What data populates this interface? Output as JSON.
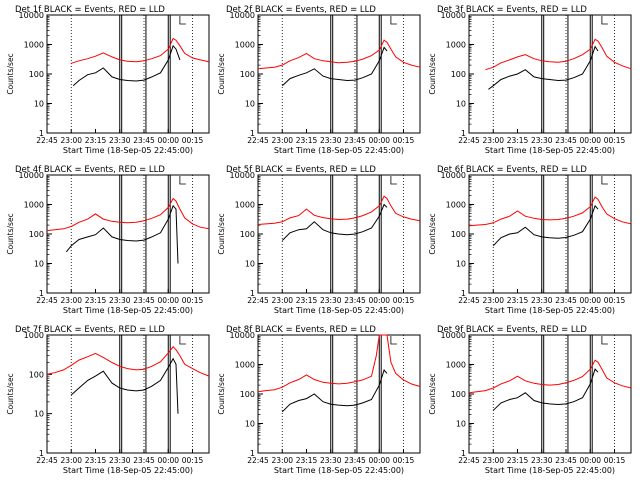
{
  "chart_data": [
    {
      "type": "line",
      "title": "Det 1f BLACK = Events, RED = LLD",
      "xlabel": "Start Time (18-Sep-05 22:45:00)",
      "ylabel": "Counts/sec",
      "yscale": "log",
      "ylim": [
        1,
        10000
      ],
      "xticks": [
        "22:45",
        "23:00",
        "23:15",
        "23:30",
        "23:45",
        "00:00",
        "00:15"
      ],
      "yticks": [
        "1",
        "10",
        "100",
        "1000",
        "10000"
      ],
      "series": [
        {
          "name": "LLD",
          "color": "#ff0000",
          "x": [
            23.0,
            23.08,
            23.17,
            23.25,
            23.33,
            23.42,
            23.5,
            23.58,
            23.67,
            23.75,
            23.83,
            23.92,
            24.0,
            24.05,
            24.08,
            24.12,
            24.17,
            24.25,
            24.33,
            24.42
          ],
          "values": [
            230,
            280,
            330,
            400,
            520,
            380,
            300,
            270,
            260,
            280,
            330,
            420,
            700,
            1600,
            1400,
            900,
            500,
            350,
            300,
            260
          ]
        },
        {
          "name": "Events",
          "color": "#000000",
          "x": [
            23.02,
            23.08,
            23.17,
            23.25,
            23.33,
            23.42,
            23.5,
            23.58,
            23.67,
            23.75,
            23.83,
            23.92,
            24.0,
            24.05,
            24.08,
            24.12
          ],
          "values": [
            40,
            60,
            95,
            110,
            160,
            80,
            65,
            60,
            58,
            62,
            80,
            110,
            300,
            900,
            700,
            300
          ]
        }
      ]
    },
    {
      "type": "line",
      "title": "Det 2f BLACK = Events, RED = LLD",
      "xlabel": "Start Time (18-Sep-05 22:45:00)",
      "ylabel": "Counts/sec",
      "yscale": "log",
      "ylim": [
        1,
        10000
      ],
      "xticks": [
        "22:45",
        "23:00",
        "23:15",
        "23:30",
        "23:45",
        "00:00",
        "00:15"
      ],
      "yticks": [
        "1",
        "10",
        "100",
        "1000",
        "10000"
      ],
      "series": [
        {
          "name": "LLD",
          "color": "#ff0000",
          "x": [
            22.75,
            22.83,
            22.92,
            23.0,
            23.08,
            23.17,
            23.25,
            23.33,
            23.42,
            23.5,
            23.58,
            23.67,
            23.75,
            23.83,
            23.92,
            24.0,
            24.05,
            24.08,
            24.12,
            24.17,
            24.25,
            24.33,
            24.42
          ],
          "values": [
            150,
            160,
            170,
            200,
            280,
            360,
            500,
            330,
            280,
            260,
            240,
            250,
            270,
            320,
            420,
            650,
            1400,
            1200,
            700,
            380,
            250,
            200,
            170
          ]
        },
        {
          "name": "Events",
          "color": "#000000",
          "x": [
            23.0,
            23.08,
            23.17,
            23.25,
            23.33,
            23.42,
            23.5,
            23.58,
            23.67,
            23.75,
            23.83,
            23.92,
            24.0,
            24.05,
            24.08
          ],
          "values": [
            40,
            70,
            90,
            110,
            150,
            85,
            70,
            65,
            60,
            62,
            75,
            100,
            280,
            800,
            600
          ]
        }
      ]
    },
    {
      "type": "line",
      "title": "Det 3f BLACK = Events, RED = LLD",
      "xlabel": "Start Time (18-Sep-05 22:45:00)",
      "ylabel": "Counts/sec",
      "yscale": "log",
      "ylim": [
        1,
        10000
      ],
      "xticks": [
        "22:45",
        "23:00",
        "23:15",
        "23:30",
        "23:45",
        "00:00",
        "00:15"
      ],
      "yticks": [
        "1",
        "10",
        "100",
        "1000",
        "10000"
      ],
      "series": [
        {
          "name": "LLD",
          "color": "#ff0000",
          "x": [
            22.92,
            23.0,
            23.08,
            23.17,
            23.25,
            23.33,
            23.42,
            23.5,
            23.58,
            23.67,
            23.75,
            23.83,
            23.92,
            24.0,
            24.05,
            24.08,
            24.12,
            24.17,
            24.25,
            24.33,
            24.42
          ],
          "values": [
            140,
            170,
            240,
            300,
            380,
            450,
            330,
            280,
            260,
            250,
            270,
            330,
            450,
            700,
            1500,
            1300,
            800,
            400,
            250,
            190,
            150
          ]
        },
        {
          "name": "Events",
          "color": "#000000",
          "x": [
            22.95,
            23.0,
            23.08,
            23.17,
            23.25,
            23.33,
            23.42,
            23.5,
            23.58,
            23.67,
            23.75,
            23.83,
            23.92,
            24.0,
            24.05,
            24.08
          ],
          "values": [
            30,
            40,
            65,
            85,
            100,
            140,
            80,
            70,
            65,
            60,
            62,
            75,
            100,
            280,
            850,
            600
          ]
        }
      ]
    },
    {
      "type": "line",
      "title": "Det 4f BLACK = Events, RED = LLD",
      "xlabel": "Start Time (18-Sep-05 22:45:00)",
      "ylabel": "Counts/sec",
      "yscale": "log",
      "ylim": [
        1,
        10000
      ],
      "xticks": [
        "22:45",
        "23:00",
        "23:15",
        "23:30",
        "23:45",
        "00:00",
        "00:15"
      ],
      "yticks": [
        "1",
        "10",
        "100",
        "1000",
        "10000"
      ],
      "series": [
        {
          "name": "LLD",
          "color": "#ff0000",
          "x": [
            22.75,
            22.83,
            22.92,
            23.0,
            23.08,
            23.17,
            23.25,
            23.33,
            23.42,
            23.5,
            23.58,
            23.67,
            23.75,
            23.83,
            23.92,
            24.0,
            24.05,
            24.08,
            24.12,
            24.17,
            24.25,
            24.33,
            24.42
          ],
          "values": [
            130,
            140,
            150,
            180,
            250,
            320,
            480,
            320,
            270,
            250,
            240,
            250,
            280,
            340,
            450,
            800,
            1600,
            1300,
            700,
            350,
            220,
            170,
            150
          ]
        },
        {
          "name": "Events",
          "color": "#000000",
          "x": [
            22.95,
            23.0,
            23.08,
            23.17,
            23.25,
            23.33,
            23.42,
            23.5,
            23.58,
            23.67,
            23.75,
            23.83,
            23.92,
            24.0,
            24.05,
            24.08,
            24.1
          ],
          "values": [
            25,
            40,
            65,
            80,
            95,
            160,
            80,
            65,
            60,
            58,
            62,
            80,
            110,
            320,
            900,
            700,
            10
          ]
        }
      ]
    },
    {
      "type": "line",
      "title": "Det 5f BLACK = Events, RED = LLD",
      "xlabel": "Start Time (18-Sep-05 22:45:00)",
      "ylabel": "Counts/sec",
      "yscale": "log",
      "ylim": [
        1,
        10000
      ],
      "xticks": [
        "22:45",
        "23:00",
        "23:15",
        "23:30",
        "23:45",
        "00:00",
        "00:15"
      ],
      "yticks": [
        "1",
        "10",
        "100",
        "1000",
        "10000"
      ],
      "series": [
        {
          "name": "LLD",
          "color": "#ff0000",
          "x": [
            22.75,
            22.83,
            22.92,
            23.0,
            23.08,
            23.17,
            23.25,
            23.33,
            23.42,
            23.5,
            23.58,
            23.67,
            23.75,
            23.83,
            23.92,
            24.0,
            24.05,
            24.08,
            24.12,
            24.17,
            24.25,
            24.33,
            24.42
          ],
          "values": [
            210,
            220,
            230,
            260,
            350,
            420,
            700,
            430,
            360,
            330,
            310,
            320,
            350,
            420,
            560,
            900,
            1900,
            1600,
            900,
            500,
            380,
            320,
            280
          ]
        },
        {
          "name": "Events",
          "color": "#000000",
          "x": [
            23.0,
            23.08,
            23.17,
            23.25,
            23.33,
            23.42,
            23.5,
            23.58,
            23.67,
            23.75,
            23.83,
            23.92,
            24.0,
            24.05,
            24.08
          ],
          "values": [
            60,
            110,
            140,
            150,
            260,
            140,
            110,
            100,
            95,
            100,
            120,
            160,
            400,
            1000,
            800
          ]
        }
      ]
    },
    {
      "type": "line",
      "title": "Det 6f BLACK = Events, RED = LLD",
      "xlabel": "Start Time (18-Sep-05 22:45:00)",
      "ylabel": "Counts/sec",
      "yscale": "log",
      "ylim": [
        1,
        10000
      ],
      "xticks": [
        "22:45",
        "23:00",
        "23:15",
        "23:30",
        "23:45",
        "00:00",
        "00:15"
      ],
      "yticks": [
        "1",
        "10",
        "100",
        "1000",
        "10000"
      ],
      "series": [
        {
          "name": "LLD",
          "color": "#ff0000",
          "x": [
            22.75,
            22.83,
            22.92,
            23.0,
            23.08,
            23.17,
            23.25,
            23.33,
            23.42,
            23.5,
            23.58,
            23.67,
            23.75,
            23.83,
            23.92,
            24.0,
            24.05,
            24.08,
            24.12,
            24.17,
            24.25,
            24.33,
            24.42
          ],
          "values": [
            190,
            200,
            210,
            240,
            320,
            400,
            600,
            400,
            340,
            310,
            300,
            310,
            340,
            400,
            520,
            850,
            1800,
            1500,
            850,
            480,
            330,
            260,
            220
          ]
        },
        {
          "name": "Events",
          "color": "#000000",
          "x": [
            23.0,
            23.08,
            23.17,
            23.25,
            23.33,
            23.42,
            23.5,
            23.58,
            23.67,
            23.75,
            23.83,
            23.92,
            24.0,
            24.05,
            24.08
          ],
          "values": [
            40,
            75,
            100,
            110,
            170,
            95,
            80,
            75,
            72,
            76,
            90,
            120,
            320,
            900,
            700
          ]
        }
      ]
    },
    {
      "type": "line",
      "title": "Det 7f BLACK = Events, RED = LLD",
      "xlabel": "Start Time (18-Sep-05 22:45:00)",
      "ylabel": "Counts/sec",
      "yscale": "log",
      "ylim": [
        1,
        1000
      ],
      "xticks": [
        "22:45",
        "23:00",
        "23:15",
        "23:30",
        "23:45",
        "00:00",
        "00:15"
      ],
      "yticks": [
        "1",
        "10",
        "100",
        "1000"
      ],
      "series": [
        {
          "name": "LLD",
          "color": "#ff0000",
          "x": [
            22.75,
            22.83,
            22.92,
            23.0,
            23.08,
            23.17,
            23.25,
            23.33,
            23.42,
            23.5,
            23.58,
            23.67,
            23.75,
            23.83,
            23.92,
            24.0,
            24.05,
            24.08,
            24.12,
            24.17,
            24.25,
            24.33,
            24.42
          ],
          "values": [
            100,
            110,
            130,
            170,
            230,
            280,
            340,
            270,
            200,
            160,
            140,
            130,
            135,
            160,
            210,
            350,
            500,
            420,
            300,
            180,
            140,
            110,
            90
          ]
        },
        {
          "name": "Events",
          "color": "#000000",
          "x": [
            23.0,
            23.08,
            23.17,
            23.25,
            23.33,
            23.42,
            23.5,
            23.58,
            23.67,
            23.75,
            23.83,
            23.92,
            24.0,
            24.05,
            24.08,
            24.1
          ],
          "values": [
            30,
            45,
            70,
            90,
            120,
            60,
            45,
            40,
            38,
            40,
            50,
            70,
            150,
            250,
            180,
            10
          ]
        }
      ]
    },
    {
      "type": "line",
      "title": "Det 8f BLACK = Events, RED = LLD",
      "xlabel": "Start Time (18-Sep-05 22:45:00)",
      "ylabel": "Counts/sec",
      "yscale": "log",
      "ylim": [
        1,
        10000
      ],
      "xticks": [
        "22:45",
        "23:00",
        "23:15",
        "23:30",
        "23:45",
        "00:00",
        "00:15"
      ],
      "yticks": [
        "1",
        "10",
        "100",
        "1000",
        "10000"
      ],
      "series": [
        {
          "name": "LLD",
          "color": "#ff0000",
          "x": [
            22.75,
            22.83,
            22.92,
            23.0,
            23.08,
            23.17,
            23.25,
            23.33,
            23.42,
            23.5,
            23.58,
            23.67,
            23.75,
            23.83,
            23.92,
            23.97,
            24.0,
            24.03,
            24.05,
            24.08,
            24.12,
            24.17,
            24.25,
            24.33,
            24.42
          ],
          "values": [
            120,
            130,
            140,
            170,
            240,
            310,
            440,
            310,
            250,
            230,
            220,
            230,
            260,
            300,
            400,
            2000,
            10000,
            10000,
            10000,
            10000,
            1200,
            500,
            300,
            220,
            180
          ]
        },
        {
          "name": "Events",
          "color": "#000000",
          "x": [
            23.0,
            23.08,
            23.17,
            23.25,
            23.33,
            23.42,
            23.5,
            23.58,
            23.67,
            23.75,
            23.83,
            23.92,
            24.0,
            24.05,
            24.08
          ],
          "values": [
            25,
            45,
            60,
            70,
            100,
            55,
            45,
            42,
            40,
            42,
            50,
            65,
            200,
            650,
            500
          ]
        }
      ]
    },
    {
      "type": "line",
      "title": "Det 9f BLACK = Events, RED = LLD",
      "xlabel": "Start Time (18-Sep-05 22:45:00)",
      "ylabel": "Counts/sec",
      "yscale": "log",
      "ylim": [
        1,
        10000
      ],
      "xticks": [
        "22:45",
        "23:00",
        "23:15",
        "23:30",
        "23:45",
        "00:00",
        "00:15"
      ],
      "yticks": [
        "1",
        "10",
        "100",
        "1000",
        "10000"
      ],
      "series": [
        {
          "name": "LLD",
          "color": "#ff0000",
          "x": [
            22.75,
            22.83,
            22.92,
            23.0,
            23.08,
            23.17,
            23.25,
            23.33,
            23.42,
            23.5,
            23.58,
            23.67,
            23.75,
            23.83,
            23.92,
            24.0,
            24.05,
            24.08,
            24.12,
            24.17,
            24.25,
            24.33,
            24.42
          ],
          "values": [
            110,
            120,
            130,
            160,
            220,
            280,
            400,
            280,
            230,
            210,
            200,
            210,
            240,
            290,
            390,
            700,
            1400,
            1200,
            700,
            350,
            240,
            190,
            160
          ]
        },
        {
          "name": "Events",
          "color": "#000000",
          "x": [
            23.0,
            23.08,
            23.17,
            23.25,
            23.33,
            23.42,
            23.5,
            23.58,
            23.67,
            23.75,
            23.83,
            23.92,
            24.0,
            24.05,
            24.08
          ],
          "values": [
            28,
            50,
            65,
            75,
            110,
            60,
            50,
            46,
            44,
            46,
            55,
            75,
            220,
            700,
            550
          ]
        }
      ]
    }
  ]
}
